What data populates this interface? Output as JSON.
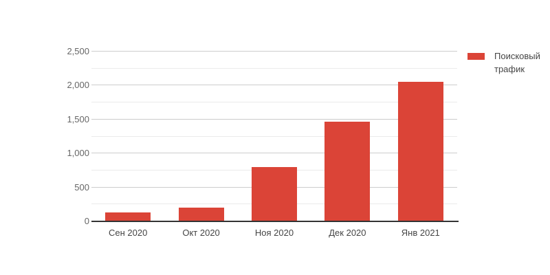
{
  "chart_data": {
    "type": "bar",
    "title": "",
    "categories": [
      "Сен 2020",
      "Окт 2020",
      "Ноя 2020",
      "Дек 2020",
      "Янв 2021"
    ],
    "series": [
      {
        "name": "Поисковый трафик",
        "color": "#db4437",
        "values": [
          130,
          200,
          800,
          1470,
          2050
        ]
      }
    ],
    "ylim": [
      0,
      2500
    ],
    "yticks_major": [
      0,
      500,
      1000,
      1500,
      2000,
      2500
    ],
    "ytick_labels": [
      "0",
      "500",
      "1,000",
      "1,500",
      "2,000",
      "2,500"
    ],
    "yticks_minor": [
      250,
      750,
      1250,
      1750,
      2250
    ],
    "grid": true,
    "legend_position": "right"
  },
  "colors": {
    "bar": "#db4437",
    "gridline_major": "#cccccc",
    "gridline_minor": "#ebebeb",
    "baseline": "#333333",
    "ytick_text": "#666666",
    "xtick_text": "#444444",
    "legend_text": "#444444",
    "background": "#ffffff"
  }
}
